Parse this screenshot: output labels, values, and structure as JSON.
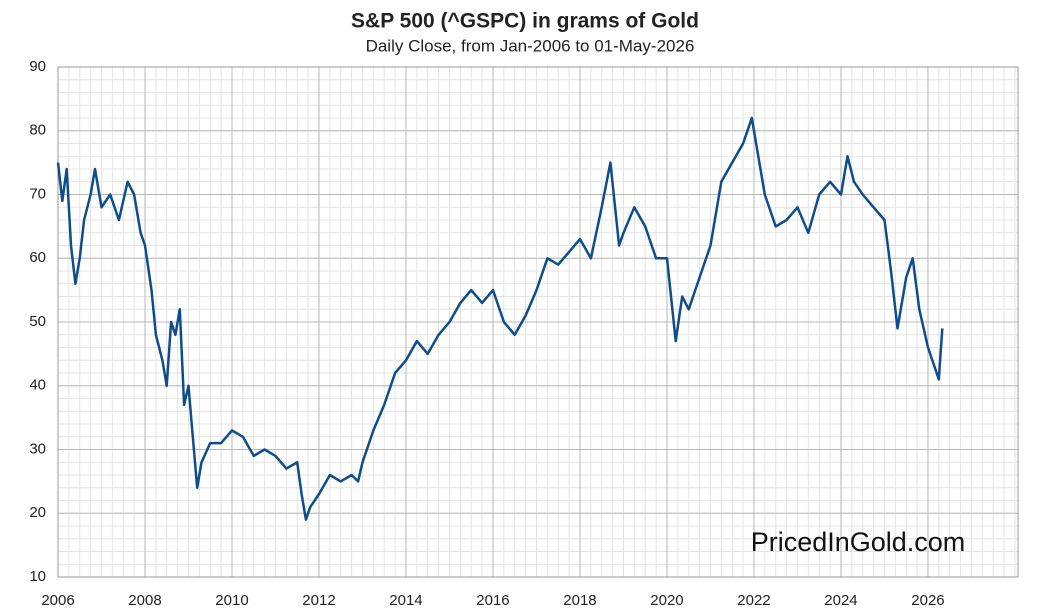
{
  "chart_data": {
    "type": "line",
    "title": "S&P 500 (^GSPC) in grams of Gold",
    "subtitle": "Daily Close, from Jan-2006 to 01-May-2026",
    "watermark": "PricedInGold.com",
    "x": [
      2006.0,
      2006.1,
      2006.2,
      2006.3,
      2006.4,
      2006.5,
      2006.6,
      2006.75,
      2006.85,
      2007.0,
      2007.2,
      2007.4,
      2007.6,
      2007.75,
      2007.9,
      2008.0,
      2008.15,
      2008.25,
      2008.4,
      2008.5,
      2008.6,
      2008.7,
      2008.8,
      2008.9,
      2009.0,
      2009.1,
      2009.2,
      2009.3,
      2009.5,
      2009.75,
      2010.0,
      2010.25,
      2010.5,
      2010.75,
      2011.0,
      2011.25,
      2011.5,
      2011.6,
      2011.7,
      2011.8,
      2012.0,
      2012.25,
      2012.5,
      2012.75,
      2012.9,
      2013.0,
      2013.25,
      2013.5,
      2013.75,
      2014.0,
      2014.25,
      2014.5,
      2014.75,
      2015.0,
      2015.25,
      2015.5,
      2015.75,
      2016.0,
      2016.25,
      2016.5,
      2016.75,
      2017.0,
      2017.25,
      2017.5,
      2017.75,
      2018.0,
      2018.25,
      2018.5,
      2018.7,
      2018.9,
      2019.0,
      2019.25,
      2019.5,
      2019.75,
      2020.0,
      2020.2,
      2020.35,
      2020.5,
      2020.75,
      2021.0,
      2021.25,
      2021.5,
      2021.75,
      2021.95,
      2022.1,
      2022.25,
      2022.5,
      2022.75,
      2023.0,
      2023.25,
      2023.5,
      2023.75,
      2024.0,
      2024.15,
      2024.3,
      2024.5,
      2024.75,
      2025.0,
      2025.15,
      2025.3,
      2025.5,
      2025.65,
      2025.8,
      2026.0,
      2026.15,
      2026.25,
      2026.33
    ],
    "series": [
      {
        "name": "S&P 500 in grams of Gold",
        "color": "#0f4c8a",
        "values": [
          75,
          69,
          74,
          62,
          56,
          60,
          66,
          70,
          74,
          68,
          70,
          66,
          72,
          70,
          64,
          62,
          55,
          48,
          44,
          40,
          50,
          48,
          52,
          37,
          40,
          32,
          24,
          28,
          31,
          31,
          33,
          32,
          29,
          30,
          29,
          27,
          28,
          23,
          19,
          21,
          23,
          26,
          25,
          26,
          25,
          28,
          33,
          37,
          42,
          44,
          47,
          45,
          48,
          50,
          53,
          55,
          53,
          55,
          50,
          48,
          51,
          55,
          60,
          59,
          61,
          63,
          60,
          68,
          75,
          62,
          64,
          68,
          65,
          60,
          60,
          47,
          54,
          52,
          57,
          62,
          72,
          75,
          78,
          82,
          76,
          70,
          65,
          66,
          68,
          64,
          70,
          72,
          70,
          76,
          72,
          70,
          68,
          66,
          58,
          49,
          57,
          60,
          52,
          46,
          43,
          41,
          49
        ]
      }
    ],
    "xlim": [
      2006,
      2028.07
    ],
    "ylim": [
      10,
      90
    ],
    "xticks": [
      2006,
      2008,
      2010,
      2012,
      2014,
      2016,
      2018,
      2020,
      2022,
      2024,
      2026
    ],
    "yticks": [
      10,
      20,
      30,
      40,
      50,
      60,
      70,
      80,
      90
    ],
    "grid": true
  }
}
